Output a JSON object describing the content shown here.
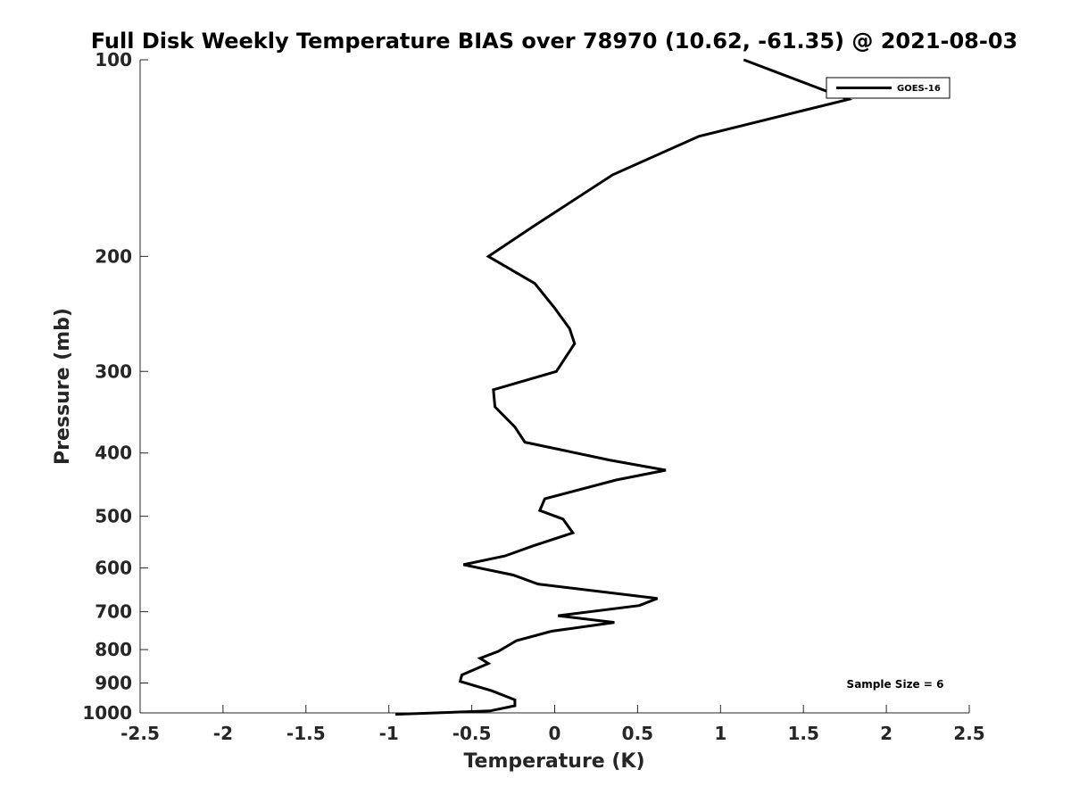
{
  "chart_data": {
    "type": "line",
    "title": "Full Disk Weekly Temperature BIAS over 78970 (10.62, -61.35) @ 2021-08-03",
    "xlabel": "Temperature (K)",
    "ylabel": "Pressure (mb)",
    "xlim": [
      -2.5,
      2.5
    ],
    "ylim": [
      100,
      1000
    ],
    "y_scale": "log",
    "y_reversed": true,
    "grid": false,
    "x_ticks": [
      -2.5,
      -2,
      -1.5,
      -1,
      -0.5,
      0,
      0.5,
      1,
      1.5,
      2,
      2.5
    ],
    "x_tick_labels": [
      "-2.5",
      "-2",
      "-1.5",
      "-1",
      "-0.5",
      "0",
      "0.5",
      "1",
      "1.5",
      "2",
      "2.5"
    ],
    "y_ticks": [
      100,
      200,
      300,
      400,
      500,
      600,
      700,
      800,
      900,
      1000
    ],
    "y_tick_labels": [
      "100",
      "200",
      "300",
      "400",
      "500",
      "600",
      "700",
      "800",
      "900",
      "1000"
    ],
    "legend_position": "top-right",
    "annotation": "Sample Size = 6",
    "series": [
      {
        "name": "GOES-16",
        "color": "#000000",
        "x": [
          1.14,
          1.77,
          0.87,
          0.35,
          -0.13,
          -0.4,
          -0.12,
          0.0,
          0.09,
          0.12,
          0.01,
          -0.37,
          -0.36,
          -0.24,
          -0.18,
          0.33,
          0.67,
          0.37,
          -0.06,
          -0.09,
          0.05,
          0.11,
          -0.13,
          -0.3,
          -0.55,
          -0.25,
          -0.1,
          0.62,
          0.51,
          0.02,
          0.36,
          -0.02,
          -0.23,
          -0.34,
          -0.45,
          -0.4,
          -0.56,
          -0.57,
          -0.38,
          -0.24,
          -0.24,
          -0.39,
          -0.96
        ],
        "y": [
          100,
          115,
          131,
          150,
          180,
          200,
          220,
          240,
          258,
          272,
          300,
          320,
          340,
          365,
          385,
          410,
          425,
          440,
          470,
          490,
          505,
          530,
          555,
          575,
          593,
          615,
          635,
          668,
          685,
          710,
          727,
          750,
          775,
          805,
          825,
          840,
          875,
          895,
          925,
          955,
          975,
          993,
          1005
        ]
      }
    ]
  }
}
